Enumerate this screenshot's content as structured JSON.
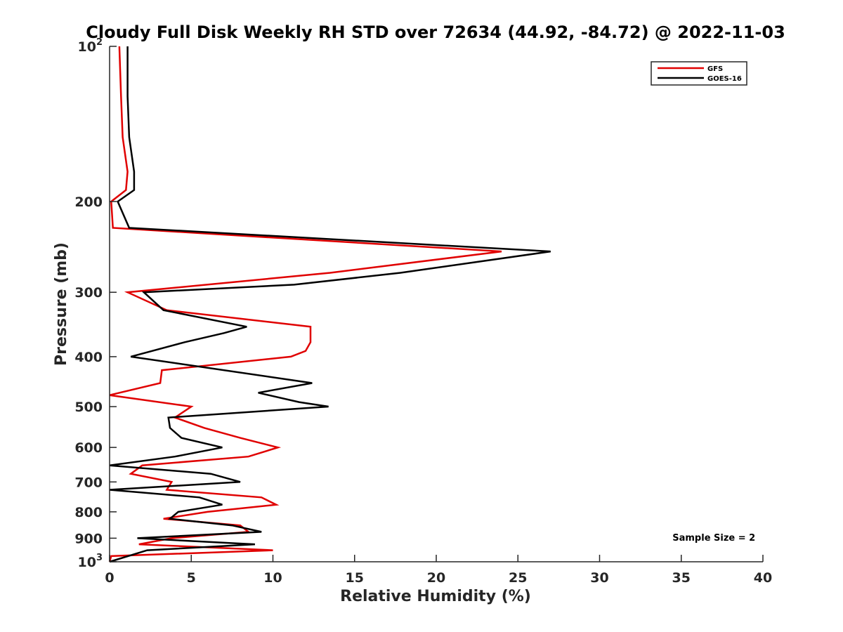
{
  "chart_data": {
    "type": "line",
    "title": "Cloudy Full Disk Weekly RH STD over 72634 (44.92, -84.72) @ 2022-11-03",
    "xlabel": "Relative Humidity (%)",
    "ylabel": "Pressure (mb)",
    "xlim": [
      0,
      40
    ],
    "ylim": [
      1000,
      100
    ],
    "yscale": "log",
    "y_reversed": true,
    "grid": false,
    "legend_position": "top-right",
    "x_ticks": [
      {
        "value": 0,
        "label": "0"
      },
      {
        "value": 5,
        "label": "5"
      },
      {
        "value": 10,
        "label": "10"
      },
      {
        "value": 15,
        "label": "15"
      },
      {
        "value": 20,
        "label": "20"
      },
      {
        "value": 25,
        "label": "25"
      },
      {
        "value": 30,
        "label": "30"
      },
      {
        "value": 35,
        "label": "35"
      },
      {
        "value": 40,
        "label": "40"
      }
    ],
    "y_ticks": [
      {
        "value": 100,
        "base": "10",
        "exp": "2"
      },
      {
        "value": 200,
        "label": "200"
      },
      {
        "value": 300,
        "label": "300"
      },
      {
        "value": 400,
        "label": "400"
      },
      {
        "value": 500,
        "label": "500"
      },
      {
        "value": 600,
        "label": "600"
      },
      {
        "value": 700,
        "label": "700"
      },
      {
        "value": 800,
        "label": "800"
      },
      {
        "value": 900,
        "label": "900"
      },
      {
        "value": 1000,
        "base": "10",
        "exp": "3"
      }
    ],
    "series": [
      {
        "name": "GFS",
        "color": "#e00000",
        "points": [
          [
            0.6,
            100
          ],
          [
            0.7,
            125
          ],
          [
            0.8,
            150
          ],
          [
            1.1,
            175
          ],
          [
            1.0,
            190
          ],
          [
            0.1,
            200
          ],
          [
            0.2,
            225
          ],
          [
            24.0,
            250
          ],
          [
            13.5,
            275
          ],
          [
            1.1,
            300
          ],
          [
            3.5,
            325
          ],
          [
            12.3,
            350
          ],
          [
            12.3,
            375
          ],
          [
            12.0,
            390
          ],
          [
            11.1,
            400
          ],
          [
            3.2,
            425
          ],
          [
            3.1,
            450
          ],
          [
            0.0,
            475
          ],
          [
            5.0,
            500
          ],
          [
            4.0,
            525
          ],
          [
            5.8,
            550
          ],
          [
            8.0,
            575
          ],
          [
            10.3,
            600
          ],
          [
            8.5,
            625
          ],
          [
            2.0,
            650
          ],
          [
            1.3,
            675
          ],
          [
            3.8,
            700
          ],
          [
            3.5,
            725
          ],
          [
            9.3,
            750
          ],
          [
            10.2,
            775
          ],
          [
            6.0,
            800
          ],
          [
            3.3,
            825
          ],
          [
            8.0,
            850
          ],
          [
            8.5,
            875
          ],
          [
            3.8,
            900
          ],
          [
            1.8,
            925
          ],
          [
            10.0,
            950
          ],
          [
            0.1,
            975
          ],
          [
            0.0,
            1000
          ]
        ]
      },
      {
        "name": "GOES-16",
        "color": "#000000",
        "points": [
          [
            1.1,
            100
          ],
          [
            1.1,
            125
          ],
          [
            1.2,
            150
          ],
          [
            1.5,
            175
          ],
          [
            1.5,
            190
          ],
          [
            0.5,
            200
          ],
          [
            1.2,
            225
          ],
          [
            27.0,
            250
          ],
          [
            17.8,
            275
          ],
          [
            11.3,
            290
          ],
          [
            2.1,
            300
          ],
          [
            3.3,
            325
          ],
          [
            8.4,
            350
          ],
          [
            7.0,
            360
          ],
          [
            4.6,
            375
          ],
          [
            1.3,
            400
          ],
          [
            12.4,
            450
          ],
          [
            9.1,
            470
          ],
          [
            11.6,
            490
          ],
          [
            13.4,
            500
          ],
          [
            3.6,
            525
          ],
          [
            3.7,
            550
          ],
          [
            4.4,
            575
          ],
          [
            6.9,
            600
          ],
          [
            4.0,
            625
          ],
          [
            0.0,
            650
          ],
          [
            6.2,
            675
          ],
          [
            8.0,
            700
          ],
          [
            0.0,
            725
          ],
          [
            5.5,
            750
          ],
          [
            6.9,
            775
          ],
          [
            4.2,
            800
          ],
          [
            3.7,
            825
          ],
          [
            7.5,
            850
          ],
          [
            9.3,
            875
          ],
          [
            1.7,
            900
          ],
          [
            8.9,
            925
          ],
          [
            2.3,
            950
          ],
          [
            0.0,
            1000
          ]
        ]
      }
    ],
    "annotations": [
      {
        "text": "Sample Size = 2",
        "x": 37,
        "y": 910
      }
    ]
  }
}
